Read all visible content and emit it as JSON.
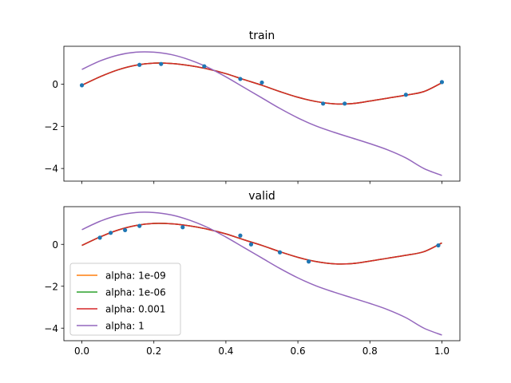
{
  "chart_data": [
    {
      "type": "line",
      "title": "train",
      "xlim": [
        -0.05,
        1.05
      ],
      "ylim": [
        -4.6,
        1.8
      ],
      "xticks": [
        0.0,
        0.2,
        0.4,
        0.6,
        0.8,
        1.0
      ],
      "xtick_labels": [
        "",
        "",
        "",
        "",
        "",
        ""
      ],
      "yticks": [
        0,
        -2,
        -4
      ],
      "ytick_labels": [
        "0",
        "−2",
        "−4"
      ],
      "scatter": {
        "color": "#1f77b4",
        "x": [
          0.0,
          0.16,
          0.22,
          0.34,
          0.44,
          0.5,
          0.67,
          0.73,
          0.9,
          1.0
        ],
        "y": [
          -0.05,
          0.92,
          0.96,
          0.85,
          0.25,
          0.08,
          -0.92,
          -0.92,
          -0.5,
          0.1
        ]
      },
      "series": [
        {
          "name": "alpha: 1e-09",
          "color": "#ff7f0e",
          "x": [
            0,
            0.05,
            0.1,
            0.15,
            0.2,
            0.25,
            0.3,
            0.35,
            0.4,
            0.45,
            0.5,
            0.55,
            0.6,
            0.65,
            0.7,
            0.75,
            0.8,
            0.85,
            0.9,
            0.95,
            1.0
          ],
          "y": [
            -0.05,
            0.35,
            0.68,
            0.9,
            1.0,
            0.98,
            0.88,
            0.72,
            0.5,
            0.22,
            -0.05,
            -0.35,
            -0.62,
            -0.82,
            -0.93,
            -0.92,
            -0.8,
            -0.66,
            -0.52,
            -0.35,
            0.07
          ]
        },
        {
          "name": "alpha: 1e-06",
          "color": "#2ca02c",
          "x": [
            0,
            0.05,
            0.1,
            0.15,
            0.2,
            0.25,
            0.3,
            0.35,
            0.4,
            0.45,
            0.5,
            0.55,
            0.6,
            0.65,
            0.7,
            0.75,
            0.8,
            0.85,
            0.9,
            0.95,
            1.0
          ],
          "y": [
            -0.05,
            0.35,
            0.68,
            0.9,
            1.0,
            0.98,
            0.88,
            0.72,
            0.5,
            0.22,
            -0.05,
            -0.35,
            -0.62,
            -0.82,
            -0.93,
            -0.92,
            -0.8,
            -0.66,
            -0.52,
            -0.35,
            0.07
          ]
        },
        {
          "name": "alpha: 0.001",
          "color": "#d62728",
          "x": [
            0,
            0.05,
            0.1,
            0.15,
            0.2,
            0.25,
            0.3,
            0.35,
            0.4,
            0.45,
            0.5,
            0.55,
            0.6,
            0.65,
            0.7,
            0.75,
            0.8,
            0.85,
            0.9,
            0.95,
            1.0
          ],
          "y": [
            -0.05,
            0.35,
            0.68,
            0.9,
            1.0,
            0.98,
            0.88,
            0.72,
            0.5,
            0.22,
            -0.05,
            -0.35,
            -0.62,
            -0.82,
            -0.93,
            -0.92,
            -0.8,
            -0.66,
            -0.52,
            -0.35,
            0.07
          ]
        },
        {
          "name": "alpha: 1",
          "color": "#9467bd",
          "x": [
            0,
            0.05,
            0.1,
            0.15,
            0.2,
            0.25,
            0.3,
            0.35,
            0.4,
            0.45,
            0.5,
            0.55,
            0.6,
            0.65,
            0.7,
            0.75,
            0.8,
            0.85,
            0.9,
            0.95,
            1.0
          ],
          "y": [
            0.7,
            1.1,
            1.38,
            1.52,
            1.52,
            1.4,
            1.15,
            0.8,
            0.35,
            -0.15,
            -0.65,
            -1.15,
            -1.6,
            -1.98,
            -2.28,
            -2.55,
            -2.82,
            -3.12,
            -3.5,
            -4.0,
            -4.33
          ]
        }
      ]
    },
    {
      "type": "line",
      "title": "valid",
      "xlim": [
        -0.05,
        1.05
      ],
      "ylim": [
        -4.6,
        1.8
      ],
      "xticks": [
        0.0,
        0.2,
        0.4,
        0.6,
        0.8,
        1.0
      ],
      "xtick_labels": [
        "0.0",
        "0.2",
        "0.4",
        "0.6",
        "0.8",
        "1.0"
      ],
      "yticks": [
        0,
        -2,
        -4
      ],
      "ytick_labels": [
        "0",
        "−2",
        "−4"
      ],
      "legend": "lower-left",
      "scatter": {
        "color": "#1f77b4",
        "x": [
          0.05,
          0.08,
          0.12,
          0.16,
          0.28,
          0.44,
          0.47,
          0.55,
          0.63,
          0.99
        ],
        "y": [
          0.32,
          0.55,
          0.68,
          0.88,
          0.82,
          0.42,
          0.0,
          -0.38,
          -0.82,
          -0.05
        ]
      },
      "series": [
        {
          "name": "alpha: 1e-09",
          "color": "#ff7f0e",
          "x": [
            0,
            0.05,
            0.1,
            0.15,
            0.2,
            0.25,
            0.3,
            0.35,
            0.4,
            0.45,
            0.5,
            0.55,
            0.6,
            0.65,
            0.7,
            0.75,
            0.8,
            0.85,
            0.9,
            0.95,
            1.0
          ],
          "y": [
            -0.05,
            0.35,
            0.68,
            0.9,
            1.0,
            0.98,
            0.88,
            0.72,
            0.5,
            0.22,
            -0.05,
            -0.35,
            -0.62,
            -0.82,
            -0.93,
            -0.92,
            -0.8,
            -0.66,
            -0.52,
            -0.35,
            0.07
          ]
        },
        {
          "name": "alpha: 1e-06",
          "color": "#2ca02c",
          "x": [
            0,
            0.05,
            0.1,
            0.15,
            0.2,
            0.25,
            0.3,
            0.35,
            0.4,
            0.45,
            0.5,
            0.55,
            0.6,
            0.65,
            0.7,
            0.75,
            0.8,
            0.85,
            0.9,
            0.95,
            1.0
          ],
          "y": [
            -0.05,
            0.35,
            0.68,
            0.9,
            1.0,
            0.98,
            0.88,
            0.72,
            0.5,
            0.22,
            -0.05,
            -0.35,
            -0.62,
            -0.82,
            -0.93,
            -0.92,
            -0.8,
            -0.66,
            -0.52,
            -0.35,
            0.07
          ]
        },
        {
          "name": "alpha: 0.001",
          "color": "#d62728",
          "x": [
            0,
            0.05,
            0.1,
            0.15,
            0.2,
            0.25,
            0.3,
            0.35,
            0.4,
            0.45,
            0.5,
            0.55,
            0.6,
            0.65,
            0.7,
            0.75,
            0.8,
            0.85,
            0.9,
            0.95,
            1.0
          ],
          "y": [
            -0.05,
            0.35,
            0.68,
            0.9,
            1.0,
            0.98,
            0.88,
            0.72,
            0.5,
            0.22,
            -0.05,
            -0.35,
            -0.62,
            -0.82,
            -0.93,
            -0.92,
            -0.8,
            -0.66,
            -0.52,
            -0.35,
            0.07
          ]
        },
        {
          "name": "alpha: 1",
          "color": "#9467bd",
          "x": [
            0,
            0.05,
            0.1,
            0.15,
            0.2,
            0.25,
            0.3,
            0.35,
            0.4,
            0.45,
            0.5,
            0.55,
            0.6,
            0.65,
            0.7,
            0.75,
            0.8,
            0.85,
            0.9,
            0.95,
            1.0
          ],
          "y": [
            0.7,
            1.1,
            1.38,
            1.52,
            1.52,
            1.4,
            1.15,
            0.8,
            0.35,
            -0.15,
            -0.65,
            -1.15,
            -1.6,
            -1.98,
            -2.28,
            -2.55,
            -2.82,
            -3.12,
            -3.5,
            -4.0,
            -4.33
          ]
        }
      ]
    }
  ]
}
